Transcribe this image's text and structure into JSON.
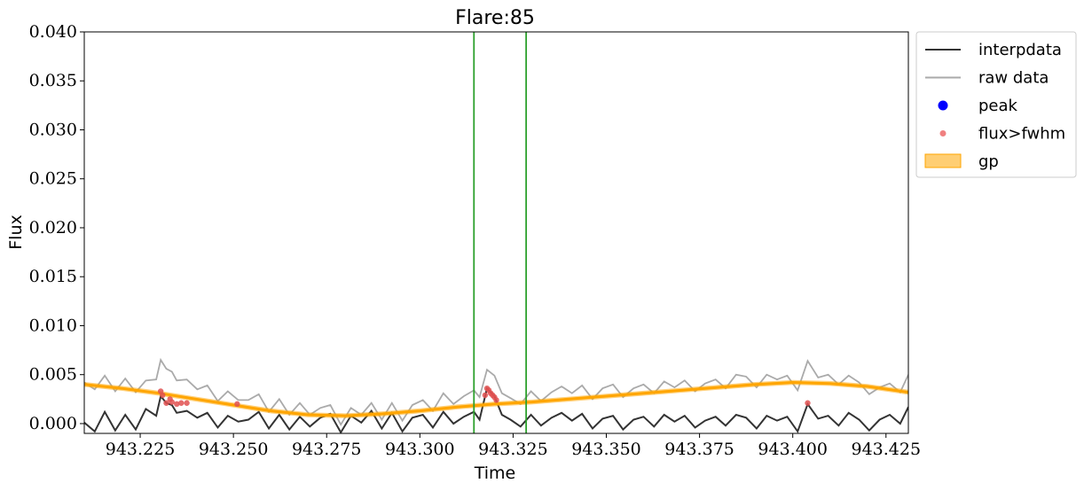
{
  "chart_data": {
    "type": "line",
    "title": "Flare:85",
    "xlabel": "Time",
    "ylabel": "Flux",
    "xlim": [
      943.21,
      943.431
    ],
    "ylim": [
      -0.001,
      0.04
    ],
    "grid": false,
    "legend_placement": "outside-upper-right",
    "x_ticks": [
      943.225,
      943.25,
      943.275,
      943.3,
      943.325,
      943.35,
      943.375,
      943.4,
      943.425
    ],
    "x_tick_labels": [
      "943.225",
      "943.250",
      "943.275",
      "943.300",
      "943.325",
      "943.350",
      "943.375",
      "943.400",
      "943.425"
    ],
    "y_ticks": [
      0.0,
      0.005,
      0.01,
      0.015,
      0.02,
      0.025,
      0.03,
      0.035,
      0.04
    ],
    "y_tick_labels": [
      "0.000",
      "0.005",
      "0.010",
      "0.015",
      "0.020",
      "0.025",
      "0.030",
      "0.035",
      "0.040"
    ],
    "vertical_lines": [
      943.3145,
      943.3285
    ],
    "series": [
      {
        "name": "interpdata",
        "color": "#333333",
        "x": [
          943.21,
          943.2128,
          943.2155,
          943.2183,
          943.221,
          943.2238,
          943.2265,
          943.2293,
          943.2305,
          943.232,
          943.2335,
          943.2348,
          943.2375,
          943.2403,
          943.243,
          943.2458,
          943.2485,
          943.2513,
          943.254,
          943.2568,
          943.2595,
          943.2623,
          943.265,
          943.2678,
          943.2705,
          943.2733,
          943.276,
          943.2788,
          943.2815,
          943.2843,
          943.287,
          943.2898,
          943.2925,
          943.2953,
          943.298,
          943.3008,
          943.3035,
          943.3063,
          943.309,
          943.3118,
          943.3145,
          943.316,
          943.318,
          943.32,
          943.322,
          943.3243,
          943.327,
          943.3298,
          943.3325,
          943.3353,
          943.338,
          943.3408,
          943.3435,
          943.3463,
          943.349,
          943.3518,
          943.3545,
          943.3573,
          943.36,
          943.3628,
          943.3655,
          943.3683,
          943.371,
          943.3738,
          943.3765,
          943.3793,
          943.382,
          943.3848,
          943.3875,
          943.3903,
          943.393,
          943.3958,
          943.3985,
          943.4013,
          943.404,
          943.4068,
          943.4095,
          943.4123,
          943.415,
          943.4178,
          943.4205,
          943.4233,
          943.426,
          943.4288,
          943.431
        ],
        "y": [
          0.0001,
          -0.0008,
          0.0012,
          -0.0007,
          0.0009,
          -0.0006,
          0.0015,
          0.0008,
          0.0028,
          0.0021,
          0.0019,
          0.0011,
          0.0013,
          0.0006,
          0.0011,
          -0.0004,
          0.0008,
          0.0002,
          0.0004,
          0.0012,
          -0.0005,
          0.0009,
          -0.0006,
          0.0007,
          -0.0003,
          0.0006,
          0.001,
          -0.0009,
          0.0008,
          0.0001,
          0.0013,
          -0.0005,
          0.0011,
          -0.0008,
          0.0006,
          0.0009,
          -0.0004,
          0.0012,
          0.0,
          0.0007,
          0.0012,
          0.0004,
          0.0036,
          0.0028,
          0.0009,
          0.0004,
          -0.0003,
          0.0009,
          -0.0002,
          0.0006,
          0.0011,
          0.0003,
          0.001,
          -0.0005,
          0.0005,
          0.0008,
          -0.0006,
          0.0004,
          0.0007,
          -0.0003,
          0.0009,
          0.0002,
          0.0008,
          -0.0004,
          0.0003,
          0.0007,
          -0.0002,
          0.0009,
          0.0006,
          -0.0005,
          0.0008,
          0.0003,
          0.0007,
          -0.0008,
          0.002,
          0.0005,
          0.0008,
          -0.0002,
          0.0011,
          0.0004,
          -0.0007,
          0.0004,
          0.0009,
          0.0,
          0.0017
        ]
      },
      {
        "name": "raw data",
        "color": "#aaaaaa",
        "x": [
          943.21,
          943.2128,
          943.2155,
          943.2183,
          943.221,
          943.2238,
          943.2265,
          943.2293,
          943.2305,
          943.232,
          943.2335,
          943.2348,
          943.2375,
          943.2403,
          943.243,
          943.2458,
          943.2485,
          943.2513,
          943.254,
          943.2568,
          943.2595,
          943.2623,
          943.265,
          943.2678,
          943.2705,
          943.2733,
          943.276,
          943.2788,
          943.2815,
          943.2843,
          943.287,
          943.2898,
          943.2925,
          943.2953,
          943.298,
          943.3008,
          943.3035,
          943.3063,
          943.309,
          943.3118,
          943.3145,
          943.316,
          943.318,
          943.32,
          943.322,
          943.3243,
          943.327,
          943.3298,
          943.3325,
          943.3353,
          943.338,
          943.3408,
          943.3435,
          943.3463,
          943.349,
          943.3518,
          943.3545,
          943.3573,
          943.36,
          943.3628,
          943.3655,
          943.3683,
          943.371,
          943.3738,
          943.3765,
          943.3793,
          943.382,
          943.3848,
          943.3875,
          943.3903,
          943.393,
          943.3958,
          943.3985,
          943.4013,
          943.404,
          943.4068,
          943.4095,
          943.4123,
          943.415,
          943.4178,
          943.4205,
          943.4233,
          943.426,
          943.4288,
          943.431
        ],
        "y": [
          0.0042,
          0.0035,
          0.0049,
          0.0033,
          0.0046,
          0.0032,
          0.0044,
          0.0045,
          0.0065,
          0.0056,
          0.0053,
          0.0044,
          0.0045,
          0.0035,
          0.0039,
          0.0023,
          0.0033,
          0.0024,
          0.0024,
          0.003,
          0.0012,
          0.0025,
          0.0009,
          0.0021,
          0.0009,
          0.0016,
          0.0019,
          -0.0001,
          0.0016,
          0.0009,
          0.0021,
          0.0004,
          0.0021,
          0.0003,
          0.0019,
          0.0024,
          0.0013,
          0.0031,
          0.002,
          0.0028,
          0.0034,
          0.0027,
          0.0055,
          0.0049,
          0.0031,
          0.0026,
          0.002,
          0.0033,
          0.0023,
          0.0032,
          0.0038,
          0.0031,
          0.0039,
          0.0025,
          0.0036,
          0.004,
          0.0027,
          0.0036,
          0.004,
          0.0031,
          0.0043,
          0.0037,
          0.0044,
          0.0033,
          0.0041,
          0.0045,
          0.0036,
          0.005,
          0.0048,
          0.0037,
          0.005,
          0.0045,
          0.0049,
          0.0034,
          0.0064,
          0.0047,
          0.005,
          0.004,
          0.0049,
          0.0042,
          0.003,
          0.0037,
          0.0041,
          0.0032,
          0.005
        ]
      },
      {
        "name": "gp",
        "color": "#ffa500",
        "x": [
          943.21,
          943.22,
          943.23,
          943.24,
          943.25,
          943.26,
          943.27,
          943.28,
          943.29,
          943.3,
          943.31,
          943.32,
          943.33,
          943.34,
          943.35,
          943.36,
          943.37,
          943.38,
          943.39,
          943.4,
          943.41,
          943.42,
          943.431
        ],
        "y": [
          0.004,
          0.0036,
          0.0031,
          0.0025,
          0.0019,
          0.0013,
          0.0009,
          0.0008,
          0.001,
          0.0013,
          0.0017,
          0.002,
          0.0022,
          0.0025,
          0.0028,
          0.0031,
          0.0034,
          0.0037,
          0.004,
          0.0042,
          0.0041,
          0.0038,
          0.0032
        ]
      },
      {
        "name": "flux>fwhm",
        "color": "#f08080",
        "x": [
          943.2305,
          943.231,
          943.232,
          943.233,
          943.2335,
          943.2348,
          943.236,
          943.2375,
          943.251,
          943.3175,
          943.318,
          943.3185,
          943.319,
          943.3195,
          943.32,
          943.3205,
          943.404
        ],
        "y": [
          0.0033,
          0.0029,
          0.0021,
          0.0025,
          0.0022,
          0.002,
          0.0021,
          0.0021,
          0.002,
          0.0029,
          0.0036,
          0.0034,
          0.0031,
          0.0029,
          0.0027,
          0.0024,
          0.0021
        ]
      },
      {
        "name": "peak",
        "color": "#0000ff",
        "x": [],
        "y": []
      }
    ],
    "legend": [
      {
        "label": "interpdata",
        "kind": "line",
        "color": "#333333"
      },
      {
        "label": "raw data",
        "kind": "line",
        "color": "#aaaaaa"
      },
      {
        "label": "peak",
        "kind": "dot-large",
        "color": "#0000ff"
      },
      {
        "label": "flux>fwhm",
        "kind": "dot-small",
        "color": "#f08080"
      },
      {
        "label": "gp",
        "kind": "patch",
        "color": "#ffa500"
      }
    ]
  }
}
